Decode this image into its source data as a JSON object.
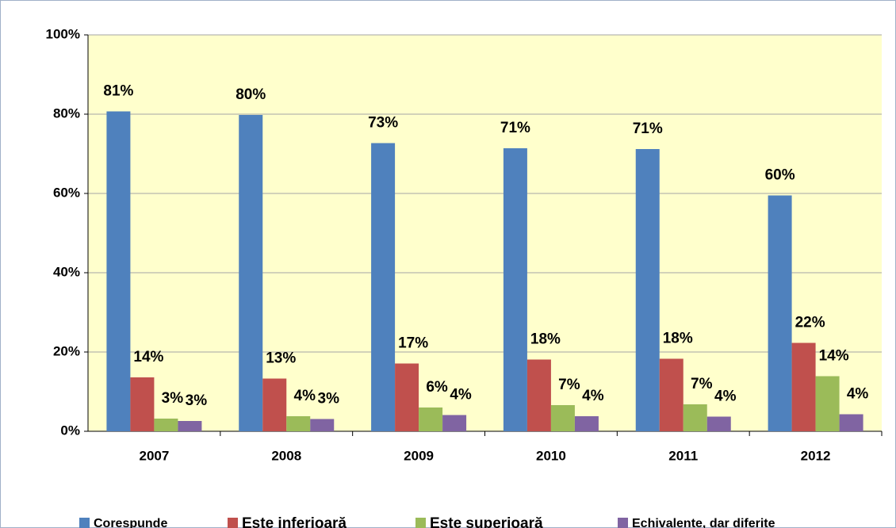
{
  "chart_data": {
    "type": "bar",
    "categories": [
      "2007",
      "2008",
      "2009",
      "2010",
      "2011",
      "2012"
    ],
    "series": [
      {
        "name": "Corespunde",
        "color": "#4f81bd",
        "values": [
          80.7,
          79.8,
          72.7,
          71.4,
          71.2,
          59.5
        ],
        "value_labels": [
          "81%",
          "80%",
          "73%",
          "71%",
          "71%",
          "60%"
        ]
      },
      {
        "name": "Este inferioară",
        "color": "#c0504d",
        "values": [
          13.6,
          13.3,
          17.1,
          18.1,
          18.3,
          22.3
        ],
        "value_labels": [
          "14%",
          "13%",
          "17%",
          "18%",
          "18%",
          "22%"
        ]
      },
      {
        "name": "Este superioară",
        "color": "#9bbb59",
        "values": [
          3.2,
          3.8,
          6.0,
          6.6,
          6.8,
          13.9
        ],
        "value_labels": [
          "3%",
          "4%",
          "6%",
          "7%",
          "7%",
          "14%"
        ]
      },
      {
        "name": "Echivalente, dar diferite",
        "color": "#8064a2",
        "values": [
          2.6,
          3.1,
          4.1,
          3.8,
          3.7,
          4.3
        ],
        "value_labels": [
          "3%",
          "3%",
          "4%",
          "4%",
          "4%",
          "4%"
        ]
      }
    ],
    "ylim": [
      0,
      100
    ],
    "yticks": [
      {
        "value": 0,
        "label": "0%"
      },
      {
        "value": 20,
        "label": "20%"
      },
      {
        "value": 40,
        "label": "40%"
      },
      {
        "value": 60,
        "label": "60%"
      },
      {
        "value": 80,
        "label": "80%"
      },
      {
        "value": 100,
        "label": "100%"
      }
    ],
    "grid": true,
    "legend": "bottom"
  }
}
